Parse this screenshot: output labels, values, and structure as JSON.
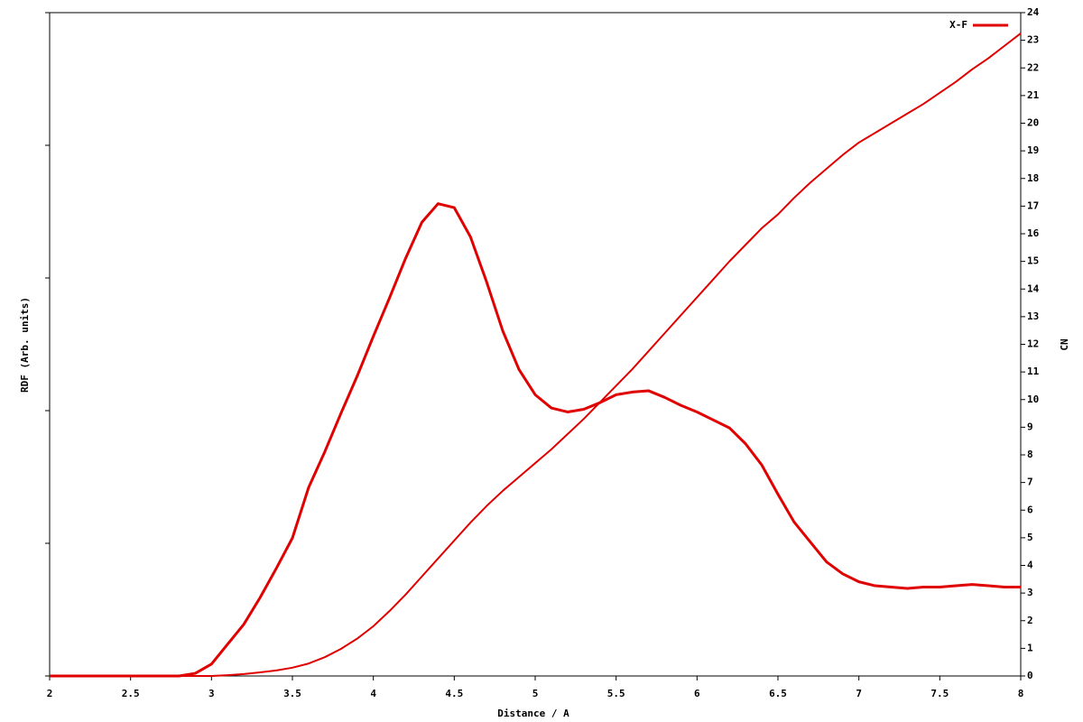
{
  "chart_data": {
    "type": "line",
    "xlabel": "Distance / A",
    "ylabel": "RDF (Arb. units)",
    "y2label": "CN",
    "x": [
      2.0,
      2.1,
      2.2,
      2.3,
      2.4,
      2.5,
      2.6,
      2.7,
      2.8,
      2.9,
      3.0,
      3.1,
      3.2,
      3.3,
      3.4,
      3.5,
      3.6,
      3.7,
      3.8,
      3.9,
      4.0,
      4.1,
      4.2,
      4.3,
      4.4,
      4.5,
      4.6,
      4.7,
      4.8,
      4.9,
      5.0,
      5.1,
      5.2,
      5.3,
      5.4,
      5.5,
      5.6,
      5.7,
      5.8,
      5.9,
      6.0,
      6.1,
      6.2,
      6.3,
      6.4,
      6.5,
      6.6,
      6.7,
      6.8,
      6.9,
      7.0,
      7.1,
      7.2,
      7.3,
      7.4,
      7.5,
      7.6,
      7.7,
      7.8,
      7.9,
      8.0
    ],
    "series": [
      {
        "name": "X-F",
        "color": "#e00000",
        "axis": "y",
        "values": [
          0,
          0,
          0,
          0,
          0,
          0,
          0,
          0,
          0,
          0.02,
          0.09,
          0.24,
          0.39,
          0.59,
          0.81,
          1.04,
          1.42,
          1.69,
          1.98,
          2.26,
          2.56,
          2.85,
          3.15,
          3.42,
          3.56,
          3.53,
          3.31,
          2.97,
          2.6,
          2.31,
          2.12,
          2.02,
          1.99,
          2.01,
          2.06,
          2.12,
          2.14,
          2.15,
          2.1,
          2.04,
          1.99,
          1.93,
          1.87,
          1.75,
          1.59,
          1.37,
          1.16,
          1.01,
          0.86,
          0.77,
          0.71,
          0.68,
          0.67,
          0.66,
          0.67,
          0.67,
          0.68,
          0.69,
          0.68,
          0.67,
          0.67
        ]
      },
      {
        "color": "#e00000",
        "axis": "y2",
        "values": [
          0,
          0,
          0,
          0,
          0,
          0,
          0,
          0,
          0,
          0,
          0,
          0.03,
          0.07,
          0.13,
          0.2,
          0.3,
          0.45,
          0.68,
          0.98,
          1.35,
          1.8,
          2.35,
          2.95,
          3.6,
          4.25,
          4.9,
          5.55,
          6.15,
          6.7,
          7.2,
          7.7,
          8.2,
          8.75,
          9.3,
          9.9,
          10.5,
          11.1,
          11.75,
          12.4,
          13.05,
          13.7,
          14.35,
          15.0,
          15.6,
          16.2,
          16.7,
          17.3,
          17.85,
          18.35,
          18.85,
          19.3,
          19.65,
          20.0,
          20.35,
          20.7,
          21.1,
          21.5,
          21.95,
          22.35,
          22.8,
          23.25
        ]
      }
    ],
    "xlim": [
      2,
      8
    ],
    "xticks": [
      2,
      2.5,
      3,
      3.5,
      4,
      4.5,
      5,
      5.5,
      6,
      6.5,
      7,
      7.5,
      8
    ],
    "ylim": [
      0,
      5
    ],
    "yticks": [
      0,
      1,
      2,
      3,
      4,
      5
    ],
    "y2lim": [
      0,
      24
    ],
    "y2ticks": [
      0,
      1,
      2,
      3,
      4,
      5,
      6,
      7,
      8,
      9,
      10,
      11,
      12,
      13,
      14,
      15,
      16,
      17,
      18,
      19,
      20,
      21,
      22,
      23,
      24
    ],
    "legend": "top-right"
  }
}
